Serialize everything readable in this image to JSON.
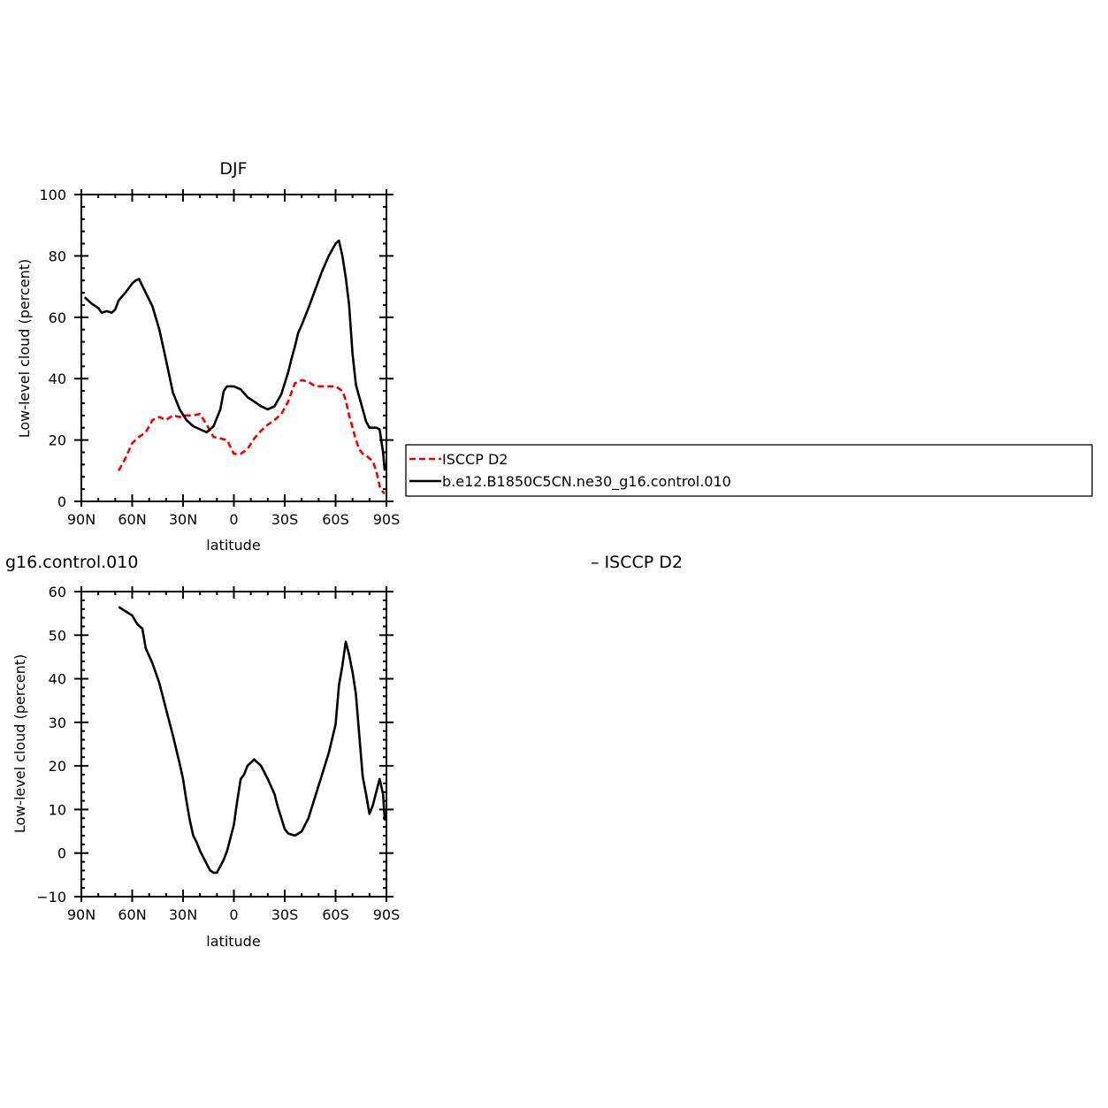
{
  "chart_data": [
    {
      "type": "line",
      "title": "DJF",
      "xlabel": "latitude",
      "ylabel": "Low-level cloud (percent)",
      "xlim": [
        -90,
        90
      ],
      "ylim": [
        0,
        100
      ],
      "xticks": [
        -90,
        -60,
        -30,
        0,
        30,
        60,
        90
      ],
      "xtick_labels": [
        "90N",
        "60N",
        "30N",
        "0",
        "30S",
        "60S",
        "90S"
      ],
      "yticks": [
        0,
        20,
        40,
        60,
        80,
        100
      ],
      "ytick_labels": [
        "0",
        "20",
        "40",
        "60",
        "80",
        "100"
      ],
      "grid": false,
      "legend_position": "right",
      "series": [
        {
          "name": "ISCCP D2",
          "color": "#ee0000",
          "dash": "dashed",
          "x": [
            -68,
            -64,
            -60,
            -56,
            -52,
            -48,
            -44,
            -40,
            -36,
            -32,
            -28,
            -24,
            -20,
            -16,
            -12,
            -8,
            -4,
            0,
            4,
            8,
            12,
            16,
            20,
            24,
            28,
            32,
            36,
            40,
            44,
            48,
            52,
            56,
            60,
            64,
            66,
            68,
            70,
            72,
            74,
            76,
            78,
            80,
            82,
            84,
            86,
            88,
            89
          ],
          "y": [
            10,
            14,
            19,
            21,
            22.5,
            26.5,
            27.5,
            26.5,
            28,
            27.5,
            28,
            28,
            28.5,
            25,
            21,
            20.5,
            20,
            15.5,
            15.5,
            17,
            20.5,
            23,
            25,
            26.5,
            28.5,
            32.5,
            38.5,
            39.5,
            39,
            37.5,
            37.5,
            37.5,
            37.5,
            36,
            33,
            28,
            24,
            20,
            17,
            15.5,
            15,
            14,
            13,
            10,
            5,
            3,
            2.5
          ]
        },
        {
          "name": "b.e12.B1850C5CN.ne30_g16.control.010",
          "color": "#000000",
          "dash": "solid",
          "x": [
            -88,
            -84,
            -80,
            -78,
            -75,
            -72,
            -70,
            -68,
            -64,
            -60,
            -58,
            -56,
            -52,
            -48,
            -44,
            -40,
            -36,
            -32,
            -28,
            -24,
            -20,
            -16,
            -12,
            -8,
            -6,
            -4,
            0,
            4,
            8,
            12,
            16,
            20,
            24,
            28,
            32,
            34,
            36,
            38,
            40,
            44,
            48,
            52,
            56,
            60,
            62,
            64,
            66,
            68,
            70,
            72,
            74,
            76,
            78,
            80,
            82,
            84,
            86,
            88,
            89
          ],
          "y": [
            66.5,
            64.5,
            63,
            61.5,
            62,
            61.5,
            62.5,
            65.5,
            68,
            71,
            72,
            72.5,
            68,
            63.5,
            56,
            46,
            35.5,
            30,
            26.5,
            24.5,
            23.5,
            22.5,
            24.5,
            30,
            36,
            37.5,
            37.5,
            36.5,
            34,
            32.5,
            31,
            30,
            31,
            35,
            42,
            46.5,
            50.5,
            55,
            57.5,
            63,
            69,
            75,
            80,
            84,
            85,
            80,
            73,
            64,
            48,
            38,
            34,
            30,
            26,
            24,
            24,
            24,
            23.5,
            16,
            10
          ]
        }
      ]
    },
    {
      "type": "line",
      "title_fragment_left": "g16.control.010",
      "title_fragment_right": "–  ISCCP D2",
      "xlabel": "latitude",
      "ylabel": "Low-level cloud (percent)",
      "xlim": [
        -90,
        90
      ],
      "ylim": [
        -10,
        60
      ],
      "xticks": [
        -90,
        -60,
        -30,
        0,
        30,
        60,
        90
      ],
      "xtick_labels": [
        "90N",
        "60N",
        "30N",
        "0",
        "30S",
        "60S",
        "90S"
      ],
      "yticks": [
        -10,
        0,
        10,
        20,
        30,
        40,
        50,
        60
      ],
      "ytick_labels": [
        "−10",
        "0",
        "10",
        "20",
        "30",
        "40",
        "50",
        "60"
      ],
      "grid": false,
      "series": [
        {
          "color": "#000000",
          "dash": "solid",
          "x": [
            -68,
            -64,
            -62,
            -60,
            -57,
            -54,
            -52,
            -48,
            -44,
            -40,
            -36,
            -32,
            -30,
            -28,
            -26,
            -24,
            -22,
            -20,
            -18,
            -16,
            -14,
            -12,
            -10,
            -8,
            -6,
            -4,
            0,
            2,
            4,
            6,
            8,
            12,
            16,
            20,
            24,
            26,
            28,
            30,
            32,
            36,
            40,
            44,
            48,
            52,
            56,
            60,
            62,
            64,
            66,
            68,
            70,
            72,
            74,
            76,
            78,
            80,
            82,
            84,
            86,
            88,
            89
          ],
          "y": [
            56.5,
            55.5,
            55,
            54.5,
            52.5,
            51.5,
            47,
            43.5,
            39,
            33,
            27,
            20.5,
            17,
            12,
            7.5,
            4,
            2.5,
            0.5,
            -1,
            -2.5,
            -4,
            -4.5,
            -4.5,
            -3,
            -1.5,
            0.5,
            6.5,
            12,
            17,
            18,
            20,
            21.5,
            20,
            17,
            13.5,
            10.5,
            8,
            5.5,
            4.5,
            4,
            5,
            8,
            13,
            18,
            23,
            29.5,
            38.5,
            43,
            48.5,
            45.5,
            41.5,
            36.5,
            27,
            17.5,
            13.5,
            9,
            11,
            14,
            17,
            13.5,
            7.5
          ]
        }
      ]
    }
  ],
  "legend": {
    "entries": [
      {
        "label": "ISCCP D2",
        "color": "#ee0000",
        "dash": "dashed"
      },
      {
        "label": "b.e12.B1850C5CN.ne30_g16.control.010",
        "color": "#000000",
        "dash": "solid"
      }
    ]
  }
}
